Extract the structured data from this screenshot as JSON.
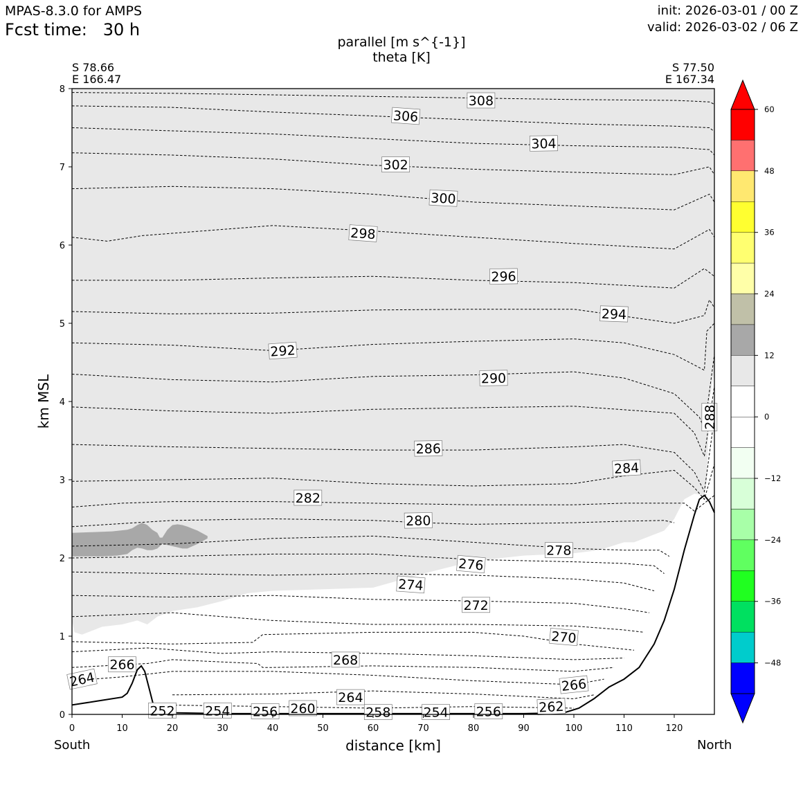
{
  "header": {
    "model": "MPAS-8.3.0 for AMPS",
    "fcst_time": "Fcst time:   30 h",
    "init": "init: 2026-03-01 / 00 Z",
    "valid": "valid: 2026-03-02 / 06 Z"
  },
  "corners": {
    "left_lat": "S 78.66",
    "left_lon": "E 166.47",
    "right_lat": "S 77.50",
    "right_lon": "E 167.34"
  },
  "ends": {
    "south": "South",
    "north": "North"
  },
  "colors": {
    "frame": "#000000",
    "contour": "#000000",
    "shade_6_12": "#e8e8e8",
    "shade_12_18": "#a8a8a8"
  },
  "chart_data": {
    "type": "contour",
    "title": "parallel [m s^{-1}]",
    "subtitle": "theta [K]",
    "xlabel": "distance [km]",
    "ylabel": "km MSL",
    "xlim": [
      0,
      128
    ],
    "ylim": [
      0,
      8
    ],
    "xticks": [
      0,
      10,
      20,
      30,
      40,
      50,
      60,
      70,
      80,
      90,
      100,
      110,
      120
    ],
    "yticks": [
      0,
      1,
      2,
      3,
      4,
      5,
      6,
      7,
      8
    ],
    "terrain": {
      "x": [
        0,
        5,
        10,
        11,
        12,
        13,
        13.8,
        14.5,
        15.5,
        16.5,
        18,
        20,
        30,
        60,
        90,
        98,
        101,
        104,
        107,
        110,
        113,
        116,
        118,
        120,
        122,
        124,
        125,
        126,
        127,
        128
      ],
      "y": [
        0.12,
        0.17,
        0.22,
        0.27,
        0.4,
        0.57,
        0.62,
        0.55,
        0.3,
        0.05,
        0.02,
        0.02,
        0.01,
        0.01,
        0.01,
        0.02,
        0.08,
        0.2,
        0.35,
        0.45,
        0.6,
        0.9,
        1.2,
        1.6,
        2.1,
        2.55,
        2.75,
        2.8,
        2.72,
        2.58
      ]
    },
    "shading": [
      {
        "range": "6 to 12",
        "x": [
          0,
          0.5,
          2,
          4,
          6,
          10,
          13,
          15,
          17,
          20,
          25,
          30,
          35,
          40,
          50,
          60,
          70,
          80,
          90,
          100,
          105,
          110,
          112,
          114,
          116,
          118,
          120,
          122,
          124,
          126,
          126.5,
          127,
          128
        ],
        "y": [
          1.2,
          1.05,
          1.02,
          1.07,
          1.12,
          1.15,
          1.2,
          1.15,
          1.25,
          1.32,
          1.37,
          1.45,
          1.55,
          1.58,
          1.6,
          1.62,
          1.8,
          1.96,
          2.03,
          2.06,
          2.1,
          2.2,
          2.2,
          2.25,
          2.3,
          2.35,
          2.5,
          2.75,
          2.82,
          2.8,
          3.0,
          4.0,
          4.4
        ]
      },
      {
        "range": "12 to 18",
        "x": [
          0,
          4,
          8,
          11,
          12,
          13,
          14,
          15,
          16,
          17,
          17.5,
          18,
          19,
          20,
          21,
          22,
          23,
          25,
          27,
          27,
          25,
          23,
          22,
          20,
          18,
          17.5,
          17,
          16,
          15,
          14,
          13,
          12,
          11,
          9,
          6,
          3,
          0
        ],
        "y": [
          2.32,
          2.33,
          2.34,
          2.36,
          2.38,
          2.42,
          2.45,
          2.42,
          2.36,
          2.32,
          2.26,
          2.26,
          2.36,
          2.42,
          2.43,
          2.42,
          2.4,
          2.35,
          2.28,
          2.25,
          2.18,
          2.12,
          2.12,
          2.15,
          2.18,
          2.15,
          2.12,
          2.1,
          2.1,
          2.12,
          2.13,
          2.1,
          2.05,
          2.03,
          2.02,
          2.02,
          2.02
        ]
      }
    ],
    "theta_lines": [
      {
        "x": [
          0,
          20,
          40,
          60,
          80,
          100,
          120,
          127,
          128
        ],
        "y": [
          7.95,
          7.94,
          7.92,
          7.9,
          7.88,
          7.86,
          7.85,
          7.83,
          7.8
        ]
      },
      {
        "x": [
          0,
          20,
          40,
          60,
          80,
          100,
          120,
          127,
          128
        ],
        "y": [
          7.78,
          7.76,
          7.7,
          7.65,
          7.6,
          7.55,
          7.52,
          7.5,
          7.45
        ]
      },
      {
        "x": [
          0,
          20,
          40,
          60,
          80,
          100,
          120,
          127,
          128
        ],
        "y": [
          7.5,
          7.46,
          7.42,
          7.36,
          7.3,
          7.27,
          7.25,
          7.22,
          7.15
        ]
      },
      {
        "x": [
          0,
          20,
          40,
          60,
          80,
          100,
          120,
          127,
          128
        ],
        "y": [
          7.18,
          7.15,
          7.1,
          7.02,
          6.97,
          6.93,
          6.9,
          7.0,
          6.9
        ]
      },
      {
        "x": [
          0,
          20,
          40,
          60,
          80,
          100,
          120,
          127,
          128
        ],
        "y": [
          6.72,
          6.75,
          6.72,
          6.65,
          6.55,
          6.5,
          6.45,
          6.65,
          6.55
        ]
      },
      {
        "x": [
          0,
          7,
          14,
          30,
          40,
          60,
          80,
          100,
          120,
          127,
          128
        ],
        "y": [
          6.1,
          6.05,
          6.12,
          6.2,
          6.25,
          6.18,
          6.1,
          6.02,
          5.95,
          6.2,
          6.1
        ]
      },
      {
        "x": [
          0,
          20,
          40,
          60,
          80,
          100,
          120,
          126,
          128
        ],
        "y": [
          5.55,
          5.55,
          5.58,
          5.6,
          5.55,
          5.52,
          5.45,
          5.7,
          5.6
        ]
      },
      {
        "x": [
          0,
          20,
          40,
          60,
          80,
          100,
          120,
          126,
          127,
          128
        ],
        "y": [
          5.15,
          5.12,
          5.13,
          5.17,
          5.18,
          5.18,
          5.0,
          5.1,
          5.3,
          5.2
        ]
      },
      {
        "x": [
          0,
          20,
          40,
          60,
          80,
          100,
          110,
          120,
          126,
          126.5,
          128
        ],
        "y": [
          4.75,
          4.72,
          4.65,
          4.73,
          4.77,
          4.8,
          4.75,
          4.6,
          4.4,
          4.9,
          5.0
        ]
      },
      {
        "x": [
          0,
          20,
          40,
          60,
          80,
          100,
          110,
          120,
          125,
          126,
          128
        ],
        "y": [
          4.35,
          4.28,
          4.25,
          4.32,
          4.34,
          4.38,
          4.3,
          4.1,
          3.8,
          3.65,
          4.6
        ]
      },
      {
        "x": [
          0,
          20,
          40,
          60,
          80,
          100,
          120,
          124,
          126,
          128
        ],
        "y": [
          3.93,
          3.88,
          3.85,
          3.9,
          3.92,
          3.94,
          3.85,
          3.6,
          3.3,
          4.2
        ]
      },
      {
        "x": [
          0,
          20,
          40,
          60,
          80,
          100,
          110,
          120,
          124,
          126,
          128
        ],
        "y": [
          3.45,
          3.42,
          3.4,
          3.38,
          3.38,
          3.42,
          3.45,
          3.35,
          3.1,
          2.85,
          3.8
        ]
      },
      {
        "x": [
          0,
          20,
          40,
          60,
          80,
          100,
          110,
          120,
          124,
          126,
          128
        ],
        "y": [
          2.98,
          3.0,
          3.02,
          2.95,
          2.92,
          2.95,
          3.05,
          3.12,
          2.9,
          2.75,
          3.2
        ]
      },
      {
        "x": [
          0,
          10,
          20,
          40,
          60,
          80,
          100,
          110,
          118,
          122,
          124,
          128
        ],
        "y": [
          2.65,
          2.7,
          2.72,
          2.72,
          2.7,
          2.68,
          2.68,
          2.7,
          2.7,
          2.7,
          2.6,
          2.8
        ]
      },
      {
        "x": [
          0,
          20,
          40,
          60,
          70,
          80,
          100,
          110,
          118,
          120
        ],
        "y": [
          2.4,
          2.48,
          2.5,
          2.48,
          2.45,
          2.43,
          2.45,
          2.47,
          2.48,
          2.45
        ]
      },
      {
        "x": [
          0,
          20,
          40,
          60,
          80,
          100,
          110,
          117,
          119
        ],
        "y": [
          2.15,
          2.18,
          2.25,
          2.28,
          2.2,
          2.12,
          2.1,
          2.1,
          2.02
        ]
      },
      {
        "x": [
          0,
          20,
          40,
          60,
          80,
          100,
          110,
          116,
          118
        ],
        "y": [
          2.0,
          2.02,
          2.05,
          2.05,
          1.98,
          1.95,
          1.93,
          1.9,
          1.8
        ]
      },
      {
        "x": [
          0,
          20,
          40,
          60,
          80,
          100,
          110,
          116
        ],
        "y": [
          1.82,
          1.8,
          1.78,
          1.8,
          1.78,
          1.73,
          1.68,
          1.58
        ]
      },
      {
        "x": [
          0,
          20,
          40,
          60,
          80,
          100,
          110,
          115
        ],
        "y": [
          1.52,
          1.5,
          1.52,
          1.47,
          1.45,
          1.42,
          1.35,
          1.3
        ]
      },
      {
        "x": [
          0,
          20,
          30,
          40,
          60,
          80,
          100,
          110,
          114
        ],
        "y": [
          1.25,
          1.3,
          1.25,
          1.2,
          1.15,
          1.15,
          1.13,
          1.08,
          1.05
        ]
      },
      {
        "x": [
          0,
          20,
          36,
          38,
          60,
          80,
          90,
          100,
          112
        ],
        "y": [
          0.93,
          0.9,
          0.92,
          1.02,
          1.05,
          1.05,
          1.0,
          0.9,
          0.82
        ]
      },
      {
        "x": [
          0,
          15,
          30,
          40,
          60,
          80,
          100,
          110
        ],
        "y": [
          0.8,
          0.85,
          0.78,
          0.8,
          0.78,
          0.75,
          0.7,
          0.72
        ]
      },
      {
        "x": [
          0,
          15,
          20,
          30,
          37,
          38,
          40,
          60,
          80,
          100,
          108
        ],
        "y": [
          0.6,
          0.65,
          0.7,
          0.67,
          0.65,
          0.6,
          0.6,
          0.62,
          0.6,
          0.55,
          0.6
        ]
      },
      {
        "x": [
          0,
          10,
          20,
          40,
          60,
          80,
          100,
          106
        ],
        "y": [
          0.43,
          0.48,
          0.55,
          0.55,
          0.5,
          0.43,
          0.38,
          0.45
        ]
      },
      {
        "x": [
          20,
          40,
          60,
          80,
          100,
          104
        ],
        "y": [
          0.25,
          0.26,
          0.3,
          0.26,
          0.2,
          0.25
        ]
      },
      {
        "x": [
          18,
          40,
          60,
          80,
          100
        ],
        "y": [
          0.12,
          0.1,
          0.08,
          0.1,
          0.08
        ]
      }
    ],
    "theta_labels": [
      {
        "text": "308",
        "x": 81.5,
        "y": 7.85,
        "angle": 0
      },
      {
        "text": "306",
        "x": 66.5,
        "y": 7.65,
        "angle": 4
      },
      {
        "text": "304",
        "x": 94,
        "y": 7.3,
        "angle": -1
      },
      {
        "text": "302",
        "x": 64.5,
        "y": 7.03,
        "angle": 0
      },
      {
        "text": "300",
        "x": 74,
        "y": 6.6,
        "angle": 3
      },
      {
        "text": "298",
        "x": 58,
        "y": 6.15,
        "angle": 4
      },
      {
        "text": "296",
        "x": 86,
        "y": 5.6,
        "angle": -1
      },
      {
        "text": "294",
        "x": 108,
        "y": 5.12,
        "angle": 2
      },
      {
        "text": "292",
        "x": 42,
        "y": 4.65,
        "angle": -4
      },
      {
        "text": "290",
        "x": 84,
        "y": 4.3,
        "angle": -1
      },
      {
        "text": "288",
        "x": 127,
        "y": 3.8,
        "angle": -90
      },
      {
        "text": "286",
        "x": 71,
        "y": 3.4,
        "angle": -1
      },
      {
        "text": "284",
        "x": 110.5,
        "y": 3.15,
        "angle": -3
      },
      {
        "text": "282",
        "x": 47,
        "y": 2.77,
        "angle": 0
      },
      {
        "text": "280",
        "x": 69,
        "y": 2.48,
        "angle": -1
      },
      {
        "text": "278",
        "x": 97,
        "y": 2.1,
        "angle": 0
      },
      {
        "text": "276",
        "x": 79.5,
        "y": 1.92,
        "angle": 5
      },
      {
        "text": "274",
        "x": 67.5,
        "y": 1.66,
        "angle": 4
      },
      {
        "text": "272",
        "x": 80.5,
        "y": 1.4,
        "angle": 0
      },
      {
        "text": "270",
        "x": 98,
        "y": 0.99,
        "angle": 5
      },
      {
        "text": "268",
        "x": 54.5,
        "y": 0.7,
        "angle": 0
      },
      {
        "text": "266",
        "x": 10,
        "y": 0.64,
        "angle": 0
      },
      {
        "text": "266",
        "x": 100,
        "y": 0.38,
        "angle": -6
      },
      {
        "text": "264",
        "x": 2,
        "y": 0.45,
        "angle": -12
      },
      {
        "text": "264",
        "x": 55.5,
        "y": 0.22,
        "angle": 0
      },
      {
        "text": "262",
        "x": 95.5,
        "y": 0.1,
        "angle": -3
      },
      {
        "text": "260",
        "x": 46,
        "y": 0.08,
        "angle": 0
      },
      {
        "text": "258",
        "x": 61,
        "y": 0.03,
        "angle": 0
      },
      {
        "text": "256",
        "x": 38.5,
        "y": 0.04,
        "angle": 0
      },
      {
        "text": "256",
        "x": 83,
        "y": 0.04,
        "angle": 0
      },
      {
        "text": "254",
        "x": 29,
        "y": 0.05,
        "angle": 0
      },
      {
        "text": "254",
        "x": 72.5,
        "y": 0.03,
        "angle": 0
      },
      {
        "text": "252",
        "x": 18,
        "y": 0.05,
        "angle": 0
      }
    ],
    "colorbar": {
      "ticks": [
        60,
        48,
        36,
        24,
        12,
        0,
        -12,
        -24,
        -36,
        -48
      ],
      "tick_labels": [
        "60",
        "48",
        "36",
        "24",
        "12",
        "0",
        "−12",
        "−24",
        "−36",
        "−48"
      ],
      "levels": [
        60,
        54,
        48,
        42,
        36,
        30,
        24,
        18,
        12,
        6,
        0,
        -6,
        -12,
        -18,
        -24,
        -30,
        -36,
        -42,
        -48,
        -54
      ],
      "colors": [
        "#ff0000",
        "#ff7070",
        "#ffe870",
        "#ffff30",
        "#ffff70",
        "#ffffa8",
        "#c0c0a8",
        "#a8a8a8",
        "#e8e8e8",
        "#ffffff",
        "#ffffff",
        "#f2fff2",
        "#d8ffd8",
        "#a8ffa8",
        "#60ff60",
        "#20ff20",
        "#00e060",
        "#00cccc",
        "#0000ff"
      ],
      "over_color": "#ff0000",
      "under_color": "#0000ff"
    }
  }
}
